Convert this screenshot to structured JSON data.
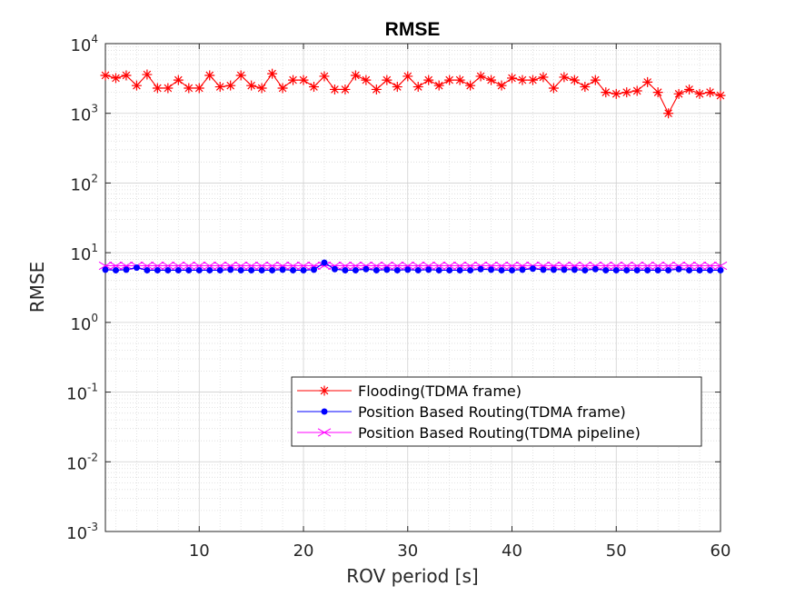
{
  "chart_data": {
    "type": "line",
    "title": "RMSE",
    "xlabel": "ROV period [s]",
    "ylabel": "RMSE",
    "y_scale": "log",
    "xlim": [
      1,
      60
    ],
    "ylim": [
      0.001,
      10000
    ],
    "x_ticks": [
      10,
      20,
      30,
      40,
      50,
      60
    ],
    "y_ticks": [
      {
        "base": "10",
        "exp": "-3",
        "value": 0.001
      },
      {
        "base": "10",
        "exp": "-2",
        "value": 0.01
      },
      {
        "base": "10",
        "exp": "-1",
        "value": 0.1
      },
      {
        "base": "10",
        "exp": "0",
        "value": 1
      },
      {
        "base": "10",
        "exp": "1",
        "value": 10
      },
      {
        "base": "10",
        "exp": "2",
        "value": 100
      },
      {
        "base": "10",
        "exp": "3",
        "value": 1000
      },
      {
        "base": "10",
        "exp": "4",
        "value": 10000
      }
    ],
    "grid": true,
    "minor_grid": true,
    "legend_position": "lower-right",
    "x": [
      1,
      2,
      3,
      4,
      5,
      6,
      7,
      8,
      9,
      10,
      11,
      12,
      13,
      14,
      15,
      16,
      17,
      18,
      19,
      20,
      21,
      22,
      23,
      24,
      25,
      26,
      27,
      28,
      29,
      30,
      31,
      32,
      33,
      34,
      35,
      36,
      37,
      38,
      39,
      40,
      41,
      42,
      43,
      44,
      45,
      46,
      47,
      48,
      49,
      50,
      51,
      52,
      53,
      54,
      55,
      56,
      57,
      58,
      59,
      60
    ],
    "series": [
      {
        "name": "Flooding(TDMA frame)",
        "color": "#ff0000",
        "marker": "asterisk",
        "values": [
          3500,
          3200,
          3500,
          2500,
          3600,
          2300,
          2300,
          3000,
          2300,
          2300,
          3500,
          2400,
          2500,
          3500,
          2500,
          2300,
          3700,
          2300,
          3000,
          3000,
          2400,
          3400,
          2200,
          2200,
          3500,
          3000,
          2200,
          3000,
          2400,
          3400,
          2400,
          3000,
          2500,
          3000,
          3000,
          2500,
          3400,
          3000,
          2500,
          3200,
          3000,
          3000,
          3300,
          2300,
          3300,
          3000,
          2400,
          3000,
          2000,
          1900,
          2000,
          2100,
          2800,
          2000,
          1000,
          1900,
          2200,
          1900,
          2000,
          1800
        ]
      },
      {
        "name": "Position Based Routing(TDMA frame)",
        "color": "#0000ff",
        "marker": "dot",
        "values": [
          5.7,
          5.6,
          5.7,
          6.1,
          5.6,
          5.6,
          5.6,
          5.6,
          5.6,
          5.6,
          5.6,
          5.6,
          5.7,
          5.6,
          5.6,
          5.6,
          5.6,
          5.7,
          5.6,
          5.6,
          5.7,
          7.2,
          5.8,
          5.6,
          5.6,
          5.8,
          5.6,
          5.7,
          5.6,
          5.7,
          5.6,
          5.7,
          5.6,
          5.6,
          5.6,
          5.6,
          5.8,
          5.7,
          5.6,
          5.6,
          5.7,
          5.9,
          5.7,
          5.7,
          5.7,
          5.7,
          5.6,
          5.8,
          5.6,
          5.6,
          5.6,
          5.6,
          5.6,
          5.6,
          5.6,
          5.8,
          5.6,
          5.6,
          5.6,
          5.6
        ]
      },
      {
        "name": "Position Based Routing(TDMA pipeline)",
        "color": "#ff00ff",
        "marker": "x",
        "values": [
          6.5,
          6.5,
          6.5,
          6.5,
          6.5,
          6.5,
          6.5,
          6.5,
          6.5,
          6.5,
          6.5,
          6.5,
          6.5,
          6.5,
          6.5,
          6.5,
          6.5,
          6.5,
          6.5,
          6.5,
          6.5,
          6.5,
          6.5,
          6.5,
          6.5,
          6.5,
          6.5,
          6.5,
          6.5,
          6.5,
          6.5,
          6.5,
          6.5,
          6.5,
          6.5,
          6.5,
          6.5,
          6.5,
          6.5,
          6.5,
          6.5,
          6.5,
          6.5,
          6.5,
          6.5,
          6.5,
          6.5,
          6.5,
          6.5,
          6.5,
          6.5,
          6.5,
          6.5,
          6.5,
          6.5,
          6.5,
          6.5,
          6.5,
          6.5,
          6.5
        ]
      }
    ]
  }
}
